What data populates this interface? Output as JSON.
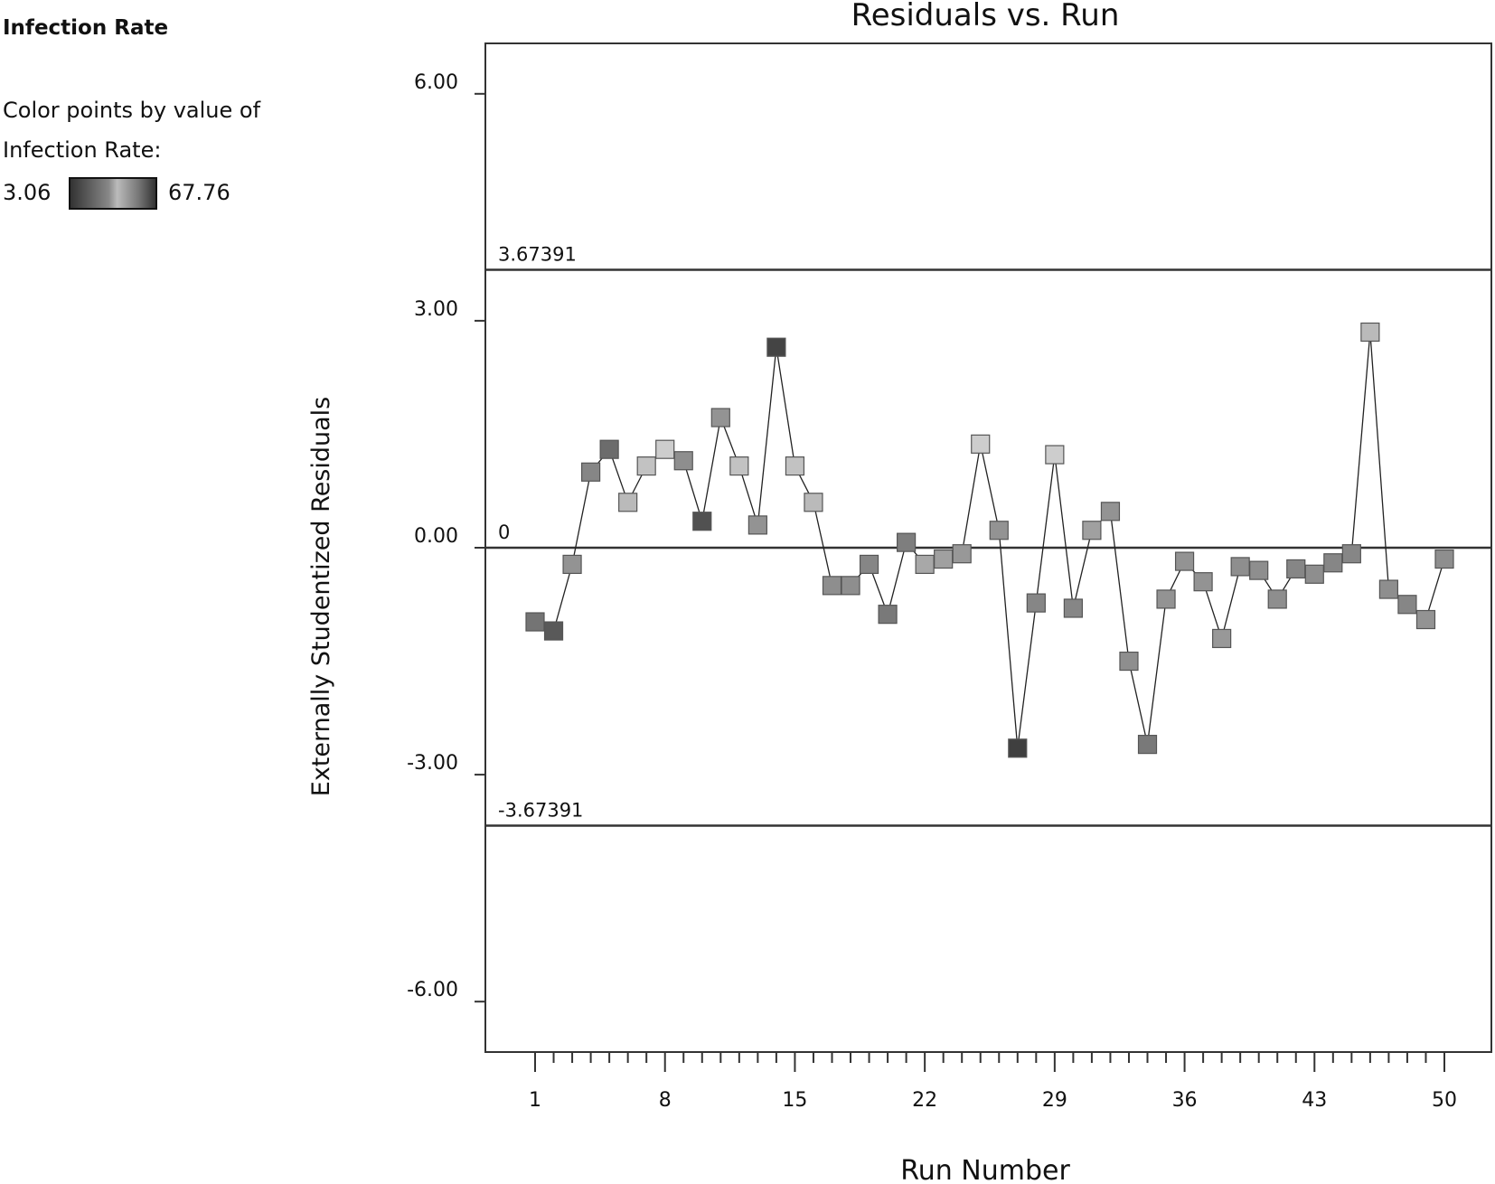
{
  "legend": {
    "heading": "Infection Rate",
    "description_line1": "Color points by value of",
    "description_line2": "Infection Rate:",
    "min_label": "3.06",
    "max_label": "67.76",
    "min_value": 3.06,
    "max_value": 67.76
  },
  "chart_data": {
    "type": "scatter",
    "title": "Residuals vs. Run",
    "xlabel": "Run Number",
    "ylabel": "Externally Studentized Residuals",
    "xlim": [
      1,
      50
    ],
    "ylim": [
      -6.6,
      6.6
    ],
    "x_ticks": [
      1,
      8,
      15,
      22,
      29,
      36,
      43,
      50
    ],
    "x_tick_labels": [
      "1",
      "8",
      "15",
      "22",
      "29",
      "36",
      "43",
      "50"
    ],
    "y_ticks": [
      6,
      3,
      0,
      -3,
      -6
    ],
    "y_tick_labels": [
      "6.00",
      "3.00",
      "0.00",
      "-3.00",
      "-6.00"
    ],
    "reference_lines": [
      {
        "value": 3.67391,
        "label": "3.67391"
      },
      {
        "value": 0,
        "label": "0"
      },
      {
        "value": -3.67391,
        "label": "-3.67391"
      }
    ],
    "connected_line": true,
    "color_by": "Infection Rate",
    "series": [
      {
        "x": [
          1,
          2,
          3,
          4,
          5,
          6,
          7,
          8,
          9,
          10,
          11,
          12,
          13,
          14,
          15,
          16,
          17,
          18,
          19,
          20,
          21,
          22,
          23,
          24,
          25,
          26,
          27,
          28,
          29,
          30,
          31,
          32,
          33,
          34,
          35,
          36,
          37,
          38,
          39,
          40,
          41,
          42,
          43,
          44,
          45,
          46,
          47,
          48,
          49,
          50
        ],
        "y": [
          -0.98,
          -1.1,
          -0.22,
          1.0,
          1.3,
          0.6,
          1.08,
          1.3,
          1.15,
          0.35,
          1.72,
          1.08,
          0.3,
          2.65,
          1.08,
          0.6,
          -0.5,
          -0.5,
          -0.22,
          -0.88,
          0.07,
          -0.22,
          -0.15,
          -0.08,
          1.37,
          0.23,
          -2.65,
          -0.73,
          1.23,
          -0.8,
          0.23,
          0.48,
          -1.5,
          -2.6,
          -0.68,
          -0.18,
          -0.45,
          -1.2,
          -0.25,
          -0.3,
          -0.68,
          -0.28,
          -0.35,
          -0.2,
          -0.08,
          2.85,
          -0.55,
          -0.75,
          -0.95,
          -0.15
        ],
        "color_values": [
          28,
          18,
          40,
          35,
          25,
          55,
          58,
          62,
          38,
          15,
          40,
          58,
          40,
          10,
          58,
          55,
          38,
          38,
          35,
          30,
          32,
          48,
          45,
          42,
          62,
          40,
          8,
          35,
          62,
          35,
          45,
          40,
          38,
          30,
          40,
          40,
          40,
          42,
          38,
          38,
          38,
          35,
          38,
          35,
          35,
          55,
          38,
          35,
          40,
          38
        ]
      }
    ]
  }
}
